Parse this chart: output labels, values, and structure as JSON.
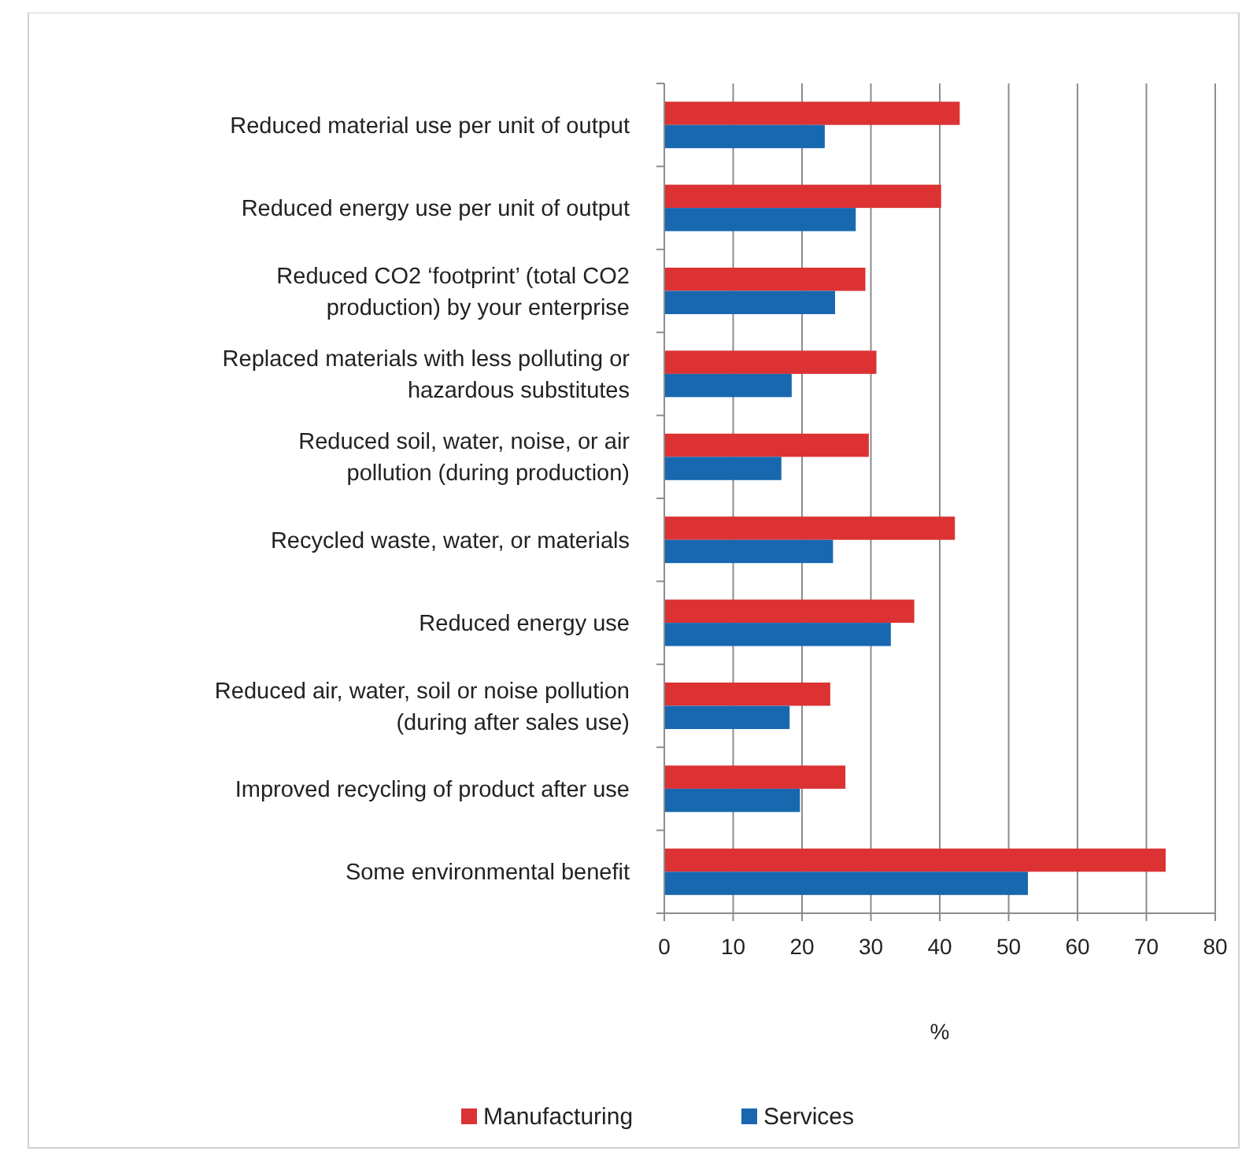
{
  "chart_data": {
    "type": "bar",
    "orientation": "horizontal",
    "xlabel": "%",
    "categories": [
      "Reduced material use per unit of output",
      "Reduced energy use per unit of output",
      "Reduced CO2 ‘footprint’ (total CO2 production) by your enterprise",
      "Replaced materials with less polluting or hazardous substitutes",
      "Reduced soil, water, noise, or air pollution (during production)",
      "Recycled waste, water, or materials",
      "Reduced energy use",
      "Reduced air, water, soil or noise pollution (during after sales use)",
      "Improved recycling of product after use",
      "Some environmental benefit"
    ],
    "series": [
      {
        "name": "Manufacturing",
        "color": "#dc3234",
        "values": [
          42.9,
          40.2,
          29.2,
          30.8,
          29.7,
          42.2,
          36.3,
          24.1,
          26.3,
          72.8
        ]
      },
      {
        "name": "Services",
        "color": "#1868b0",
        "values": [
          23.3,
          27.8,
          24.8,
          18.5,
          17.0,
          24.5,
          32.9,
          18.2,
          19.7,
          52.8
        ]
      }
    ],
    "xlim": [
      0,
      80
    ],
    "xticks": [
      0,
      10,
      20,
      30,
      40,
      50,
      60,
      70,
      80
    ],
    "grid": "x",
    "legend": "bottom"
  }
}
